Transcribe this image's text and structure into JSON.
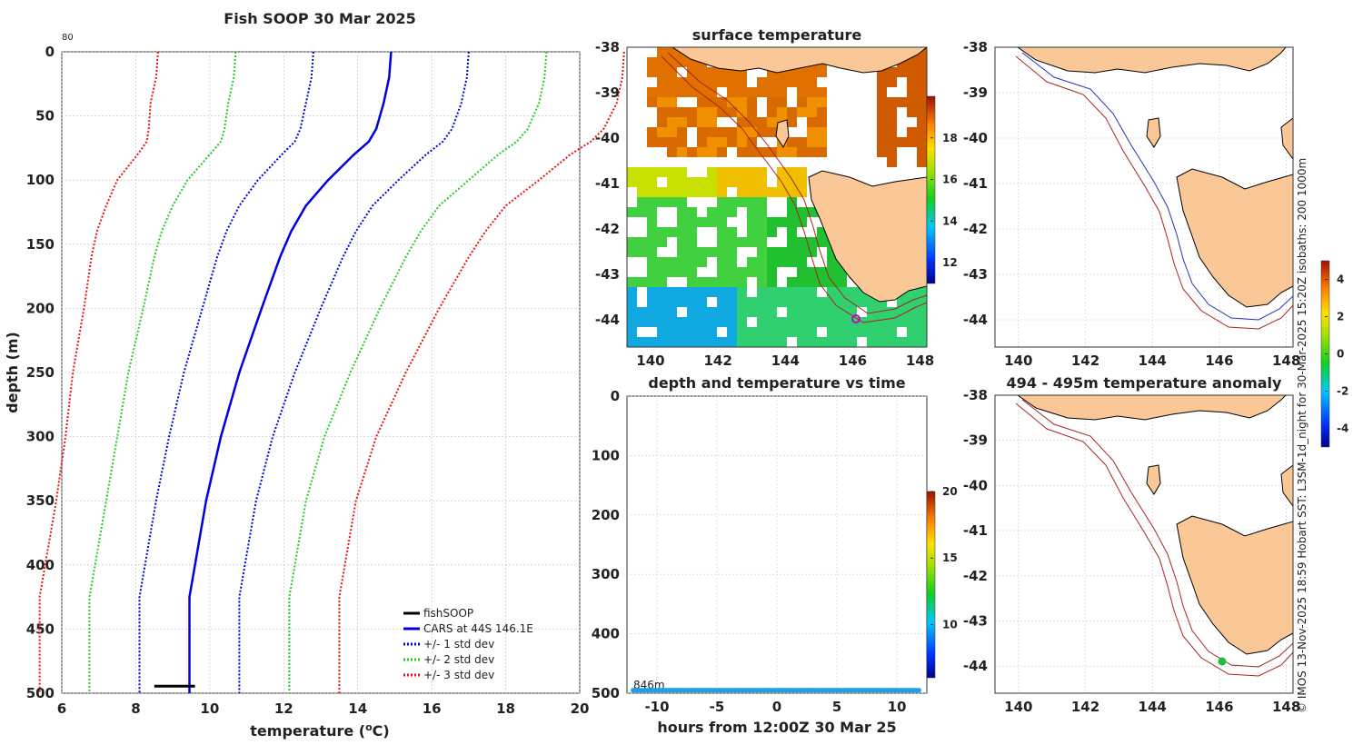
{
  "main_title": "Fish SOOP 30 Mar 2025",
  "panels": {
    "surface": {
      "title": "surface temperature",
      "xticks": [
        140,
        142,
        144,
        146,
        148
      ],
      "yticks": [
        -38,
        -39,
        -40,
        -41,
        -42,
        -43,
        -44
      ],
      "colorbar_ticks": [
        12,
        14,
        16,
        18
      ]
    },
    "timeseries": {
      "title": "depth and temperature vs time",
      "xlabel": "hours from 12:00Z 30 Mar 25",
      "xticks": [
        -10,
        -5,
        0,
        5,
        10
      ],
      "yticks": [
        0,
        100,
        200,
        300,
        400,
        500
      ],
      "depth_label": "846m",
      "colorbar_ticks": [
        10,
        15,
        20
      ]
    },
    "bathy": {
      "xticks": [
        140,
        142,
        144,
        146,
        148
      ],
      "yticks": [
        -38,
        -39,
        -40,
        -41,
        -42,
        -43,
        -44
      ]
    },
    "anomaly": {
      "title": "494 - 495m temperature anomaly",
      "xticks": [
        140,
        142,
        144,
        146,
        148
      ],
      "yticks": [
        -38,
        -39,
        -40,
        -41,
        -42,
        -43,
        -44
      ],
      "colorbar_ticks": [
        4,
        2,
        0,
        -2,
        -4
      ]
    }
  },
  "credit_text": "© IMOS 13-Nov-2025 18:59 Hobart SST: L3SM-1d_night for 30-Mar-2025 15:20Z isobaths: 200  1000m",
  "chart_data": [
    {
      "type": "line",
      "title": "Fish SOOP 30 Mar 2025",
      "xlabel": "temperature (°C)",
      "ylabel": "depth (m)",
      "xlim": [
        6,
        20
      ],
      "ylim": [
        500,
        0
      ],
      "xticks": [
        6,
        8,
        10,
        12,
        14,
        16,
        18,
        20
      ],
      "yticks": [
        0,
        50,
        100,
        150,
        200,
        250,
        300,
        350,
        400,
        450,
        500
      ],
      "corner_label": "80",
      "legend": [
        "fishSOOP",
        "CARS at 44S 146.1E",
        "+/- 1 std dev",
        "+/- 2 std dev",
        "+/- 3 std dev"
      ],
      "depth": [
        0,
        20,
        40,
        60,
        70,
        80,
        100,
        120,
        140,
        160,
        200,
        250,
        300,
        350,
        400,
        425,
        450,
        500
      ],
      "cars_mean": [
        14.9,
        14.85,
        14.7,
        14.5,
        14.3,
        13.9,
        13.2,
        12.6,
        12.2,
        11.9,
        11.4,
        10.8,
        10.3,
        9.9,
        9.6,
        9.45,
        9.45,
        9.45
      ],
      "std1": [
        2.1,
        2.1,
        2.1,
        2.05,
        2.0,
        1.95,
        1.9,
        1.8,
        1.75,
        1.7,
        1.6,
        1.5,
        1.4,
        1.35,
        1.35,
        1.35,
        1.35,
        1.35
      ],
      "fishsoop": {
        "depth": 494.5,
        "t_min": 8.5,
        "t_max": 9.6
      }
    },
    {
      "type": "scatter",
      "title": "depth and temperature vs time",
      "xlabel": "hours from 12:00Z 30 Mar 25",
      "xlim": [
        -12.5,
        12.5
      ],
      "ylim": [
        500,
        0
      ],
      "series": [
        {
          "name": "fishSOOP",
          "depth": 495,
          "t_start": -12,
          "t_end": 12,
          "temperature": 9.3
        }
      ]
    }
  ]
}
